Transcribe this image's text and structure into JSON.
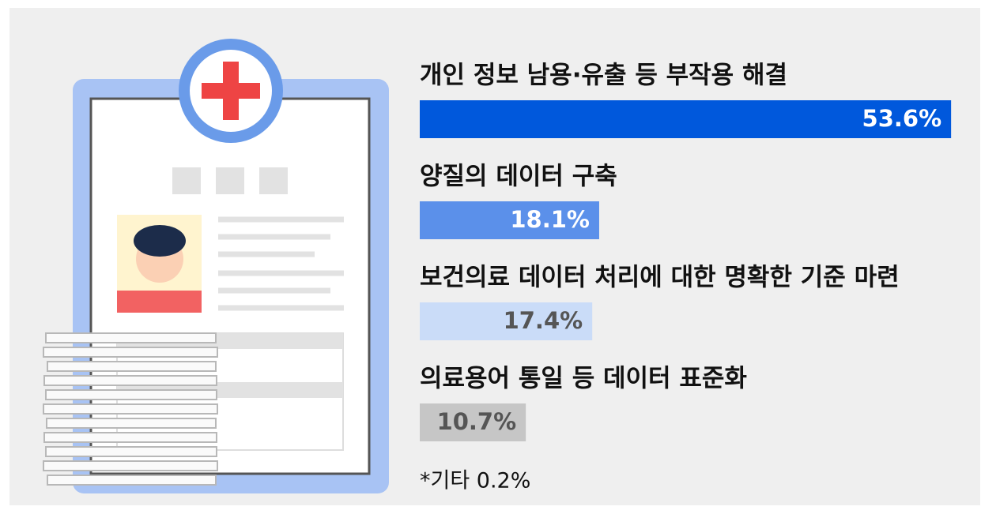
{
  "chart_data": {
    "type": "bar",
    "orientation": "horizontal",
    "categories": [
      "개인 정보 남용·유출 등 부작용 해결",
      "양질의 데이터 구축",
      "보건의료 데이터 처리에 대한 명확한 기준 마련",
      "의료용어 통일 등 데이터 표준화"
    ],
    "values": [
      53.6,
      18.1,
      17.4,
      10.7
    ],
    "value_labels": [
      "53.6%",
      "18.1%",
      "17.4%",
      "10.7%"
    ],
    "colors": [
      "#0058dc",
      "#5b90ea",
      "#cadcf8",
      "#c6c6c6"
    ],
    "note": "*기타 0.2%"
  }
}
